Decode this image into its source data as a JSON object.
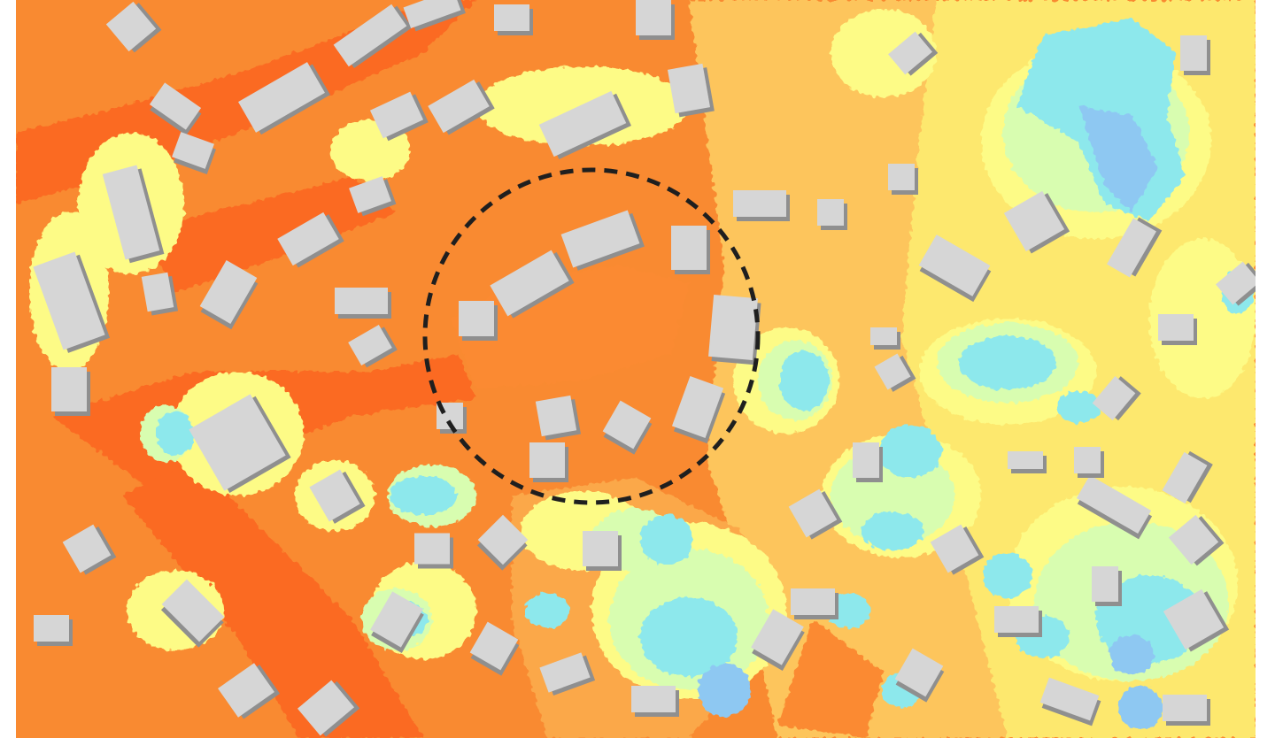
{
  "map": {
    "type": "thermal-heat-map",
    "legend_visible": false,
    "colors": {
      "hottest": "#fb6a22",
      "very_hot": "#f98a31",
      "hot": "#fba84a",
      "warm": "#fdc55c",
      "mild": "#fde86e",
      "light_yellow": "#fdfb86",
      "pale_green": "#d8fdb0",
      "cool_cyan": "#8de8ec",
      "cold_blue": "#8ec8f2",
      "building": "#d6d6d6",
      "building_shadow": "#8f8f8f"
    },
    "highlight": {
      "shape": "dashed-circle",
      "stroke_color": "#1f1f1f"
    }
  }
}
